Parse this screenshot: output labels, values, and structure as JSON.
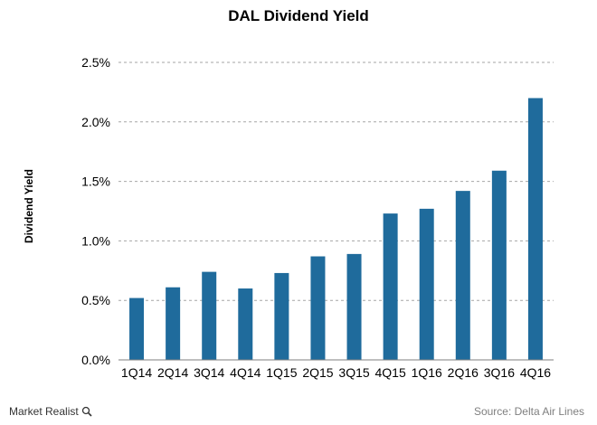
{
  "chart_data": {
    "type": "bar",
    "title": "DAL Dividend Yield",
    "xlabel": "",
    "ylabel": "Dividend Yield",
    "categories": [
      "1Q14",
      "2Q14",
      "3Q14",
      "4Q14",
      "1Q15",
      "2Q15",
      "3Q15",
      "4Q15",
      "1Q16",
      "2Q16",
      "3Q16",
      "4Q16"
    ],
    "values": [
      0.52,
      0.61,
      0.74,
      0.6,
      0.73,
      0.87,
      0.89,
      1.23,
      1.27,
      1.42,
      1.59,
      2.2
    ],
    "ylim": [
      0,
      2.5
    ],
    "yticks": [
      "0.0%",
      "0.5%",
      "1.0%",
      "1.5%",
      "2.0%",
      "2.5%"
    ],
    "bar_color": "#1f6b9c",
    "grid": true
  },
  "footer": {
    "brand": "Market Realist",
    "source": "Source: Delta Air Lines"
  }
}
